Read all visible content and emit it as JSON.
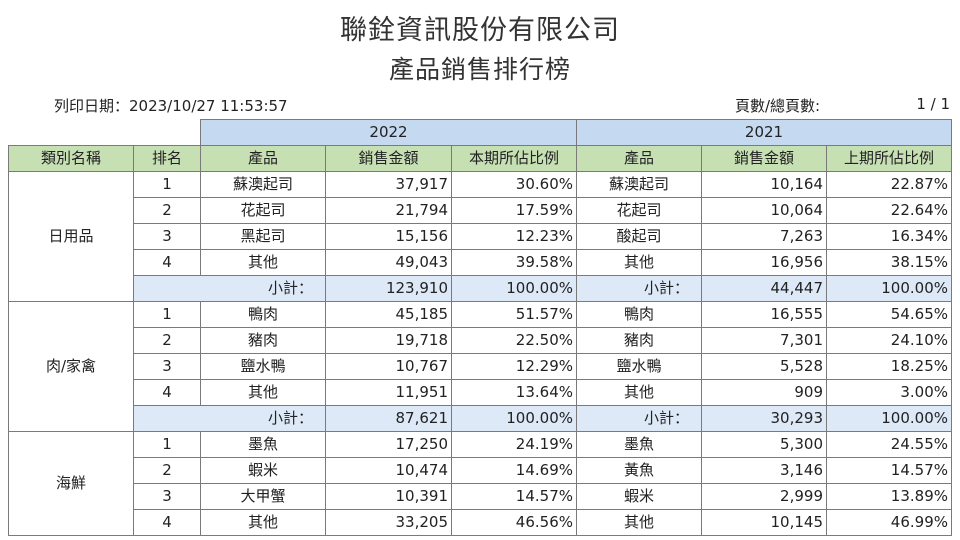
{
  "header": {
    "company": "聯銓資訊股份有限公司",
    "report_title": "產品銷售排行榜",
    "print_date": "列印日期：2023/10/27 11:53:57",
    "pages_label": "頁數/總頁數:",
    "pages_value": "1 / 1"
  },
  "table": {
    "years": [
      "2022",
      "2021"
    ],
    "columns": [
      "類別名稱",
      "排名",
      "產品",
      "銷售金額",
      "本期所佔比例",
      "產品",
      "銷售金額",
      "上期所佔比例"
    ],
    "subtotal_label": "小計：",
    "groups": [
      {
        "category": "日用品",
        "rows": [
          {
            "rank": "1",
            "p1": "蘇澳起司",
            "a1": "37,917",
            "r1": "30.60%",
            "p2": "蘇澳起司",
            "a2": "10,164",
            "r2": "22.87%"
          },
          {
            "rank": "2",
            "p1": "花起司",
            "a1": "21,794",
            "r1": "17.59%",
            "p2": "花起司",
            "a2": "10,064",
            "r2": "22.64%"
          },
          {
            "rank": "3",
            "p1": "黑起司",
            "a1": "15,156",
            "r1": "12.23%",
            "p2": "酸起司",
            "a2": "7,263",
            "r2": "16.34%"
          },
          {
            "rank": "4",
            "p1": "其他",
            "a1": "49,043",
            "r1": "39.58%",
            "p2": "其他",
            "a2": "16,956",
            "r2": "38.15%"
          }
        ],
        "subtotal": {
          "a1": "123,910",
          "r1": "100.00%",
          "a2": "44,447",
          "r2": "100.00%"
        }
      },
      {
        "category": "肉/家禽",
        "rows": [
          {
            "rank": "1",
            "p1": "鴨肉",
            "a1": "45,185",
            "r1": "51.57%",
            "p2": "鴨肉",
            "a2": "16,555",
            "r2": "54.65%"
          },
          {
            "rank": "2",
            "p1": "豬肉",
            "a1": "19,718",
            "r1": "22.50%",
            "p2": "豬肉",
            "a2": "7,301",
            "r2": "24.10%"
          },
          {
            "rank": "3",
            "p1": "鹽水鴨",
            "a1": "10,767",
            "r1": "12.29%",
            "p2": "鹽水鴨",
            "a2": "5,528",
            "r2": "18.25%"
          },
          {
            "rank": "4",
            "p1": "其他",
            "a1": "11,951",
            "r1": "13.64%",
            "p2": "其他",
            "a2": "909",
            "r2": "3.00%"
          }
        ],
        "subtotal": {
          "a1": "87,621",
          "r1": "100.00%",
          "a2": "30,293",
          "r2": "100.00%"
        }
      },
      {
        "category": "海鮮",
        "rows": [
          {
            "rank": "1",
            "p1": "墨魚",
            "a1": "17,250",
            "r1": "24.19%",
            "p2": "墨魚",
            "a2": "5,300",
            "r2": "24.55%"
          },
          {
            "rank": "2",
            "p1": "蝦米",
            "a1": "10,474",
            "r1": "14.69%",
            "p2": "黃魚",
            "a2": "3,146",
            "r2": "14.57%"
          },
          {
            "rank": "3",
            "p1": "大甲蟹",
            "a1": "10,391",
            "r1": "14.57%",
            "p2": "蝦米",
            "a2": "2,999",
            "r2": "13.89%"
          },
          {
            "rank": "4",
            "p1": "其他",
            "a1": "33,205",
            "r1": "46.56%",
            "p2": "其他",
            "a2": "10,145",
            "r2": "46.99%"
          }
        ]
      }
    ]
  }
}
